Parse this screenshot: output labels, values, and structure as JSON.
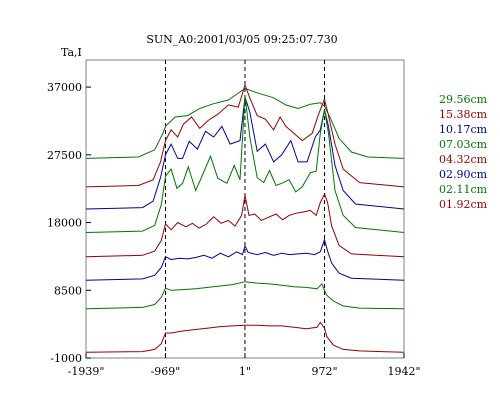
{
  "chart_data": {
    "type": "line",
    "title": "SUN_A0:2001/03/05 09:25:07.730",
    "ylabel": "Ta,I",
    "xlabel": "",
    "x_tick_labels": [
      "-1939\"",
      "-969\"",
      "1\"",
      "972\"",
      "1942\""
    ],
    "x_tick_values": [
      -1939,
      -969,
      1,
      972,
      1942
    ],
    "y_tick_labels": [
      "37000",
      "27500",
      "18000",
      "8500",
      "-1000"
    ],
    "y_tick_values": [
      37000,
      27500,
      18000,
      8500,
      -1000
    ],
    "xlim": [
      -1939,
      1942
    ],
    "ylim": [
      -1000,
      40800
    ],
    "vertical_dashed_lines_at": [
      -969,
      1,
      972
    ],
    "legend_position": "right",
    "series": [
      {
        "name": "29.56cm",
        "color": "#007700",
        "baseline": 27000,
        "shape": "broad",
        "points": [
          [
            -1939,
            27000
          ],
          [
            -1300,
            27200
          ],
          [
            -1100,
            28200
          ],
          [
            -1000,
            30500
          ],
          [
            -969,
            31500
          ],
          [
            -850,
            32800
          ],
          [
            -700,
            33000
          ],
          [
            -550,
            34000
          ],
          [
            -400,
            34600
          ],
          [
            -200,
            35200
          ],
          [
            1,
            36800
          ],
          [
            150,
            36200
          ],
          [
            350,
            35500
          ],
          [
            500,
            34500
          ],
          [
            650,
            34000
          ],
          [
            800,
            34600
          ],
          [
            920,
            34800
          ],
          [
            972,
            34300
          ],
          [
            1050,
            32500
          ],
          [
            1150,
            29800
          ],
          [
            1300,
            27900
          ],
          [
            1500,
            27200
          ],
          [
            1942,
            27000
          ]
        ]
      },
      {
        "name": "15.38cm",
        "color": "#990000",
        "baseline": 23000,
        "shape": "peaked",
        "points": [
          [
            -1939,
            23000
          ],
          [
            -1300,
            23200
          ],
          [
            -1120,
            24000
          ],
          [
            -1030,
            26500
          ],
          [
            -969,
            29500
          ],
          [
            -900,
            31000
          ],
          [
            -820,
            30000
          ],
          [
            -750,
            31800
          ],
          [
            -650,
            32800
          ],
          [
            -550,
            31200
          ],
          [
            -450,
            32300
          ],
          [
            -330,
            33200
          ],
          [
            -200,
            34500
          ],
          [
            -80,
            34200
          ],
          [
            1,
            37300
          ],
          [
            60,
            35500
          ],
          [
            150,
            33000
          ],
          [
            250,
            32500
          ],
          [
            350,
            31000
          ],
          [
            430,
            32800
          ],
          [
            500,
            31500
          ],
          [
            600,
            30500
          ],
          [
            700,
            29500
          ],
          [
            820,
            30500
          ],
          [
            900,
            33200
          ],
          [
            972,
            35300
          ],
          [
            1020,
            33000
          ],
          [
            1100,
            29000
          ],
          [
            1200,
            25500
          ],
          [
            1400,
            23600
          ],
          [
            1942,
            23000
          ]
        ]
      },
      {
        "name": "10.17cm",
        "color": "#000099",
        "baseline": 19900,
        "shape": "peaked",
        "points": [
          [
            -1939,
            19900
          ],
          [
            -1250,
            20100
          ],
          [
            -1120,
            21000
          ],
          [
            -1030,
            24300
          ],
          [
            -969,
            27500
          ],
          [
            -900,
            29000
          ],
          [
            -820,
            27000
          ],
          [
            -760,
            27000
          ],
          [
            -680,
            29400
          ],
          [
            -580,
            28300
          ],
          [
            -480,
            30800
          ],
          [
            -380,
            30000
          ],
          [
            -280,
            31500
          ],
          [
            -180,
            29000
          ],
          [
            -60,
            29500
          ],
          [
            1,
            35600
          ],
          [
            60,
            33500
          ],
          [
            150,
            28000
          ],
          [
            250,
            29000
          ],
          [
            350,
            26500
          ],
          [
            450,
            27500
          ],
          [
            560,
            29500
          ],
          [
            650,
            26500
          ],
          [
            760,
            26500
          ],
          [
            860,
            30000
          ],
          [
            920,
            31000
          ],
          [
            972,
            33800
          ],
          [
            1020,
            31500
          ],
          [
            1100,
            26000
          ],
          [
            1200,
            22500
          ],
          [
            1350,
            20600
          ],
          [
            1942,
            19900
          ]
        ]
      },
      {
        "name": "07.03cm",
        "color": "#007700",
        "baseline": 16600,
        "shape": "peaked",
        "points": [
          [
            -1939,
            16600
          ],
          [
            -1250,
            16800
          ],
          [
            -1100,
            17600
          ],
          [
            -1020,
            20500
          ],
          [
            -969,
            24500
          ],
          [
            -900,
            25500
          ],
          [
            -830,
            22800
          ],
          [
            -760,
            23500
          ],
          [
            -690,
            25800
          ],
          [
            -600,
            22500
          ],
          [
            -520,
            24600
          ],
          [
            -420,
            27300
          ],
          [
            -330,
            24200
          ],
          [
            -220,
            23500
          ],
          [
            -130,
            26000
          ],
          [
            -60,
            24000
          ],
          [
            1,
            35800
          ],
          [
            60,
            30000
          ],
          [
            150,
            24300
          ],
          [
            230,
            23600
          ],
          [
            300,
            25300
          ],
          [
            380,
            23200
          ],
          [
            450,
            23500
          ],
          [
            540,
            24000
          ],
          [
            620,
            22300
          ],
          [
            700,
            23000
          ],
          [
            800,
            25000
          ],
          [
            870,
            25200
          ],
          [
            920,
            30500
          ],
          [
            972,
            33800
          ],
          [
            1020,
            30500
          ],
          [
            1100,
            22500
          ],
          [
            1200,
            19000
          ],
          [
            1350,
            17300
          ],
          [
            1942,
            16600
          ]
        ]
      },
      {
        "name": "04.32cm",
        "color": "#990000",
        "baseline": 13200,
        "shape": "peaked",
        "points": [
          [
            -1939,
            13200
          ],
          [
            -1250,
            13400
          ],
          [
            -1100,
            14000
          ],
          [
            -1020,
            15500
          ],
          [
            -969,
            17800
          ],
          [
            -900,
            17000
          ],
          [
            -820,
            18000
          ],
          [
            -720,
            17400
          ],
          [
            -640,
            17900
          ],
          [
            -560,
            17200
          ],
          [
            -470,
            17800
          ],
          [
            -380,
            18800
          ],
          [
            -290,
            17900
          ],
          [
            -200,
            18300
          ],
          [
            -120,
            17500
          ],
          [
            -40,
            19000
          ],
          [
            1,
            21800
          ],
          [
            50,
            19000
          ],
          [
            120,
            19200
          ],
          [
            200,
            18300
          ],
          [
            300,
            18800
          ],
          [
            380,
            19200
          ],
          [
            460,
            18400
          ],
          [
            540,
            19000
          ],
          [
            620,
            19300
          ],
          [
            720,
            19500
          ],
          [
            800,
            19700
          ],
          [
            870,
            19000
          ],
          [
            920,
            20800
          ],
          [
            972,
            22000
          ],
          [
            1010,
            20800
          ],
          [
            1060,
            17500
          ],
          [
            1150,
            14800
          ],
          [
            1300,
            13600
          ],
          [
            1942,
            13200
          ]
        ]
      },
      {
        "name": "02.90cm",
        "color": "#000099",
        "baseline": 9900,
        "shape": "flat",
        "points": [
          [
            -1939,
            9900
          ],
          [
            -1250,
            10100
          ],
          [
            -1100,
            10600
          ],
          [
            -1020,
            11700
          ],
          [
            -969,
            13200
          ],
          [
            -900,
            12800
          ],
          [
            -800,
            13000
          ],
          [
            -700,
            12900
          ],
          [
            -600,
            13100
          ],
          [
            -500,
            13400
          ],
          [
            -400,
            13000
          ],
          [
            -300,
            13700
          ],
          [
            -200,
            13200
          ],
          [
            -100,
            13900
          ],
          [
            -30,
            13500
          ],
          [
            1,
            14700
          ],
          [
            40,
            13800
          ],
          [
            150,
            13500
          ],
          [
            250,
            13800
          ],
          [
            350,
            13400
          ],
          [
            450,
            13700
          ],
          [
            550,
            13500
          ],
          [
            650,
            13600
          ],
          [
            750,
            13700
          ],
          [
            850,
            13500
          ],
          [
            920,
            13900
          ],
          [
            972,
            15600
          ],
          [
            1010,
            14000
          ],
          [
            1060,
            12300
          ],
          [
            1150,
            10900
          ],
          [
            1300,
            10200
          ],
          [
            1942,
            9900
          ]
        ]
      },
      {
        "name": "02.11cm",
        "color": "#007700",
        "baseline": 5900,
        "shape": "flat",
        "points": [
          [
            -1939,
            5900
          ],
          [
            -1250,
            6100
          ],
          [
            -1100,
            6500
          ],
          [
            -1020,
            7500
          ],
          [
            -969,
            8800
          ],
          [
            -900,
            8500
          ],
          [
            -750,
            8600
          ],
          [
            -600,
            8700
          ],
          [
            -450,
            8900
          ],
          [
            -300,
            9100
          ],
          [
            -150,
            9300
          ],
          [
            1,
            9700
          ],
          [
            150,
            9500
          ],
          [
            300,
            9400
          ],
          [
            450,
            9200
          ],
          [
            600,
            9000
          ],
          [
            750,
            8900
          ],
          [
            880,
            8700
          ],
          [
            940,
            9400
          ],
          [
            972,
            8500
          ],
          [
            1000,
            7800
          ],
          [
            1080,
            7000
          ],
          [
            1200,
            6300
          ],
          [
            1400,
            6000
          ],
          [
            1942,
            5900
          ]
        ]
      },
      {
        "name": "01.92cm",
        "color": "#990000",
        "baseline": -200,
        "shape": "flat",
        "points": [
          [
            -1939,
            -200
          ],
          [
            -1250,
            -100
          ],
          [
            -1100,
            200
          ],
          [
            -1020,
            1000
          ],
          [
            -969,
            2500
          ],
          [
            -900,
            2500
          ],
          [
            -750,
            2800
          ],
          [
            -600,
            3000
          ],
          [
            -450,
            3200
          ],
          [
            -300,
            3400
          ],
          [
            -150,
            3500
          ],
          [
            1,
            3600
          ],
          [
            150,
            3600
          ],
          [
            300,
            3500
          ],
          [
            450,
            3500
          ],
          [
            600,
            3300
          ],
          [
            750,
            3100
          ],
          [
            880,
            3300
          ],
          [
            920,
            4000
          ],
          [
            972,
            3200
          ],
          [
            1000,
            2000
          ],
          [
            1080,
            800
          ],
          [
            1200,
            200
          ],
          [
            1400,
            0
          ],
          [
            1942,
            -200
          ]
        ]
      }
    ]
  }
}
